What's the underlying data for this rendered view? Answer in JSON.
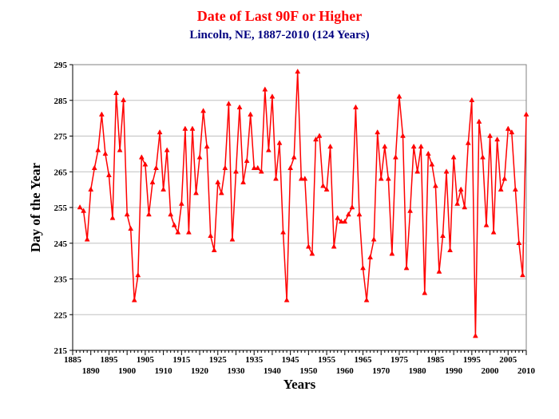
{
  "chart_data": {
    "type": "line",
    "title": "Date of Last 90F or Higher",
    "subtitle": "Lincoln, NE, 1887-2010 (124 Years)",
    "xlabel": "Years",
    "ylabel": "Day of the Year",
    "xlim": [
      1885,
      2010
    ],
    "ylim": [
      215,
      295
    ],
    "y_ticks": [
      215,
      225,
      235,
      245,
      255,
      265,
      275,
      285,
      295
    ],
    "x_ticks_upper": [
      1885,
      1895,
      1905,
      1915,
      1925,
      1935,
      1945,
      1955,
      1965,
      1975,
      1985,
      1995,
      2005
    ],
    "x_ticks_lower": [
      1890,
      1900,
      1910,
      1920,
      1930,
      1940,
      1950,
      1960,
      1970,
      1980,
      1990,
      2000,
      2010
    ],
    "grid": "horizontal",
    "colors": {
      "title": "#ff0000",
      "subtitle": "#000080",
      "series": "#ff0000",
      "grid": "#c0c0c0"
    },
    "series": [
      {
        "marker": "triangle",
        "x": [
          1887,
          1888,
          1889,
          1890,
          1891,
          1892,
          1893,
          1894,
          1895,
          1896,
          1897,
          1898,
          1899,
          1900,
          1901,
          1902,
          1903,
          1904,
          1905,
          1906,
          1907,
          1908,
          1909,
          1910,
          1911,
          1912,
          1913,
          1914,
          1915,
          1916,
          1917,
          1918,
          1919,
          1920,
          1921,
          1922,
          1923,
          1924,
          1925,
          1926,
          1927,
          1928,
          1929,
          1930,
          1931,
          1932,
          1933,
          1934,
          1935,
          1936,
          1937,
          1938,
          1939,
          1940,
          1941,
          1942,
          1943,
          1944,
          1945,
          1946,
          1947,
          1948,
          1949,
          1950,
          1951,
          1952,
          1953,
          1954,
          1955,
          1956,
          1957,
          1958,
          1959,
          1960,
          1961,
          1962,
          1963,
          1964,
          1965,
          1966,
          1967,
          1968,
          1969,
          1970,
          1971,
          1972,
          1973,
          1974,
          1975,
          1976,
          1977,
          1978,
          1979,
          1980,
          1981,
          1982,
          1983,
          1984,
          1985,
          1986,
          1987,
          1988,
          1989,
          1990,
          1991,
          1992,
          1993,
          1994,
          1995,
          1996,
          1997,
          1998,
          1999,
          2000,
          2001,
          2002,
          2003,
          2004,
          2005,
          2006,
          2007,
          2008,
          2009,
          2010
        ],
        "y": [
          255,
          254,
          246,
          260,
          266,
          271,
          281,
          270,
          264,
          252,
          287,
          271,
          285,
          253,
          249,
          229,
          236,
          269,
          267,
          253,
          262,
          266,
          276,
          260,
          271,
          253,
          250,
          248,
          256,
          277,
          248,
          277,
          259,
          269,
          282,
          272,
          247,
          243,
          262,
          259,
          266,
          284,
          246,
          265,
          283,
          262,
          268,
          281,
          266,
          266,
          265,
          288,
          271,
          286,
          263,
          273,
          248,
          229,
          266,
          269,
          293,
          263,
          263,
          244,
          242,
          274,
          275,
          261,
          260,
          272,
          244,
          252,
          251,
          251,
          253,
          255,
          283,
          253,
          238,
          229,
          241,
          246,
          276,
          263,
          272,
          263,
          242,
          269,
          286,
          275,
          238,
          254,
          272,
          265,
          272,
          231,
          270,
          267,
          261,
          237,
          247,
          265,
          243,
          269,
          256,
          260,
          255,
          273,
          285,
          219,
          279,
          269,
          250,
          275,
          248,
          274,
          260,
          263,
          277,
          276,
          260,
          245,
          236,
          281
        ]
      }
    ]
  }
}
